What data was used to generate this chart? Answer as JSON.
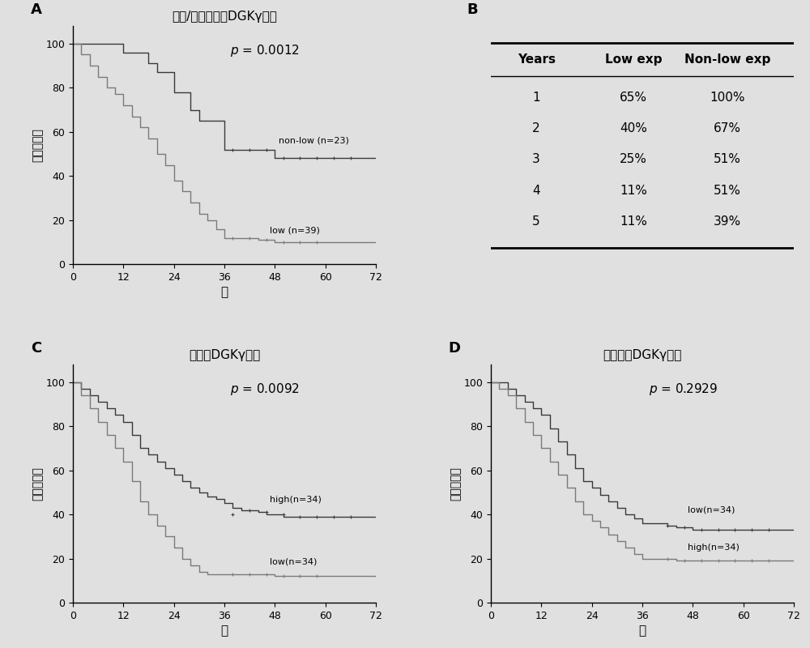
{
  "panel_A": {
    "title": "肿瘾/非肿瘾相对DGKγ表达",
    "xlabel": "月",
    "ylabel": "存活百分比",
    "pvalue": "p = 0.0012",
    "non_low": {
      "label": "non-low (n=23)",
      "x": [
        0,
        2,
        2,
        4,
        4,
        6,
        6,
        8,
        8,
        10,
        10,
        12,
        12,
        14,
        14,
        16,
        16,
        18,
        18,
        20,
        20,
        22,
        22,
        24,
        24,
        26,
        26,
        28,
        28,
        30,
        30,
        32,
        32,
        34,
        34,
        36,
        36,
        38,
        38,
        40,
        40,
        42,
        42,
        44,
        44,
        46,
        46,
        48,
        48,
        50,
        50,
        52,
        52,
        54,
        54,
        56,
        56,
        58,
        58,
        60,
        60,
        66,
        66,
        72
      ],
      "y": [
        100,
        100,
        100,
        100,
        100,
        100,
        100,
        100,
        100,
        100,
        100,
        100,
        96,
        96,
        96,
        96,
        96,
        96,
        91,
        91,
        87,
        87,
        87,
        87,
        78,
        78,
        78,
        78,
        70,
        70,
        65,
        65,
        65,
        65,
        65,
        65,
        52,
        52,
        52,
        52,
        52,
        52,
        52,
        52,
        52,
        52,
        52,
        52,
        48,
        48,
        48,
        48,
        48,
        48,
        48,
        48,
        48,
        48,
        48,
        48,
        48,
        48,
        48,
        48
      ]
    },
    "low": {
      "label": "low (n=39)",
      "x": [
        0,
        2,
        2,
        4,
        4,
        6,
        6,
        8,
        8,
        10,
        10,
        12,
        12,
        14,
        14,
        16,
        16,
        18,
        18,
        20,
        20,
        22,
        22,
        24,
        24,
        26,
        26,
        28,
        28,
        30,
        30,
        32,
        32,
        34,
        34,
        36,
        36,
        38,
        38,
        40,
        40,
        42,
        42,
        44,
        44,
        46,
        46,
        48,
        48,
        50,
        50,
        52,
        52,
        54,
        54,
        56,
        56,
        58,
        58,
        60,
        60,
        66,
        66,
        72
      ],
      "y": [
        100,
        100,
        95,
        95,
        90,
        90,
        85,
        85,
        80,
        80,
        77,
        77,
        72,
        72,
        67,
        67,
        62,
        62,
        57,
        57,
        50,
        50,
        45,
        45,
        38,
        38,
        33,
        33,
        28,
        28,
        23,
        23,
        20,
        20,
        16,
        16,
        12,
        12,
        12,
        12,
        12,
        12,
        12,
        12,
        11,
        11,
        11,
        11,
        10,
        10,
        10,
        10,
        10,
        10,
        10,
        10,
        10,
        10,
        10,
        10,
        10,
        10,
        10,
        10
      ]
    },
    "censors_non_low_x": [
      38,
      42,
      46,
      50,
      54,
      58,
      62,
      66
    ],
    "censors_non_low_y": [
      52,
      52,
      52,
      48,
      48,
      48,
      48,
      48
    ],
    "censors_low_x": [
      38,
      42,
      46,
      50,
      54,
      58
    ],
    "censors_low_y": [
      12,
      12,
      11,
      10,
      10,
      10
    ]
  },
  "panel_B": {
    "col_headers": [
      "Years",
      "Low exp",
      "Non-low exp"
    ],
    "rows": [
      [
        "1",
        "65%",
        "100%"
      ],
      [
        "2",
        "40%",
        "67%"
      ],
      [
        "3",
        "25%",
        "51%"
      ],
      [
        "4",
        "11%",
        "51%"
      ],
      [
        "5",
        "11%",
        "39%"
      ]
    ]
  },
  "panel_C": {
    "title": "肿瘾中DGKγ表达",
    "xlabel": "月",
    "ylabel": "存活百分比",
    "pvalue": "p = 0.0092",
    "high": {
      "label": "high(n=34)",
      "x": [
        0,
        2,
        2,
        4,
        4,
        6,
        6,
        8,
        8,
        10,
        10,
        12,
        12,
        14,
        14,
        16,
        16,
        18,
        18,
        20,
        20,
        22,
        22,
        24,
        24,
        26,
        26,
        28,
        28,
        30,
        30,
        32,
        32,
        34,
        34,
        36,
        36,
        38,
        38,
        40,
        40,
        42,
        42,
        44,
        44,
        46,
        46,
        48,
        48,
        50,
        50,
        52,
        52,
        54,
        54,
        56,
        56,
        58,
        58,
        60,
        60,
        66,
        66,
        72
      ],
      "y": [
        100,
        100,
        97,
        97,
        94,
        94,
        91,
        91,
        88,
        88,
        85,
        85,
        82,
        82,
        76,
        76,
        70,
        70,
        67,
        67,
        64,
        64,
        61,
        61,
        58,
        58,
        55,
        55,
        52,
        52,
        50,
        50,
        48,
        48,
        47,
        47,
        45,
        45,
        43,
        43,
        42,
        42,
        42,
        42,
        41,
        41,
        40,
        40,
        40,
        40,
        39,
        39,
        39,
        39,
        39,
        39,
        39,
        39,
        39,
        39,
        39,
        39,
        39,
        39
      ]
    },
    "low": {
      "label": "low(n=34)",
      "x": [
        0,
        2,
        2,
        4,
        4,
        6,
        6,
        8,
        8,
        10,
        10,
        12,
        12,
        14,
        14,
        16,
        16,
        18,
        18,
        20,
        20,
        22,
        22,
        24,
        24,
        26,
        26,
        28,
        28,
        30,
        30,
        32,
        32,
        34,
        34,
        36,
        36,
        38,
        38,
        40,
        40,
        42,
        42,
        44,
        44,
        46,
        46,
        48,
        48,
        50,
        50,
        52,
        52,
        54,
        54,
        56,
        56,
        58,
        58,
        60,
        60,
        66,
        66,
        72
      ],
      "y": [
        100,
        100,
        94,
        94,
        88,
        88,
        82,
        82,
        76,
        76,
        70,
        70,
        64,
        64,
        55,
        55,
        46,
        46,
        40,
        40,
        35,
        35,
        30,
        30,
        25,
        25,
        20,
        20,
        17,
        17,
        14,
        14,
        13,
        13,
        13,
        13,
        13,
        13,
        13,
        13,
        13,
        13,
        13,
        13,
        13,
        13,
        13,
        13,
        12,
        12,
        12,
        12,
        12,
        12,
        12,
        12,
        12,
        12,
        12,
        12,
        12,
        12,
        12,
        12
      ]
    },
    "censors_high_x": [
      38,
      42,
      46,
      50,
      54,
      58,
      62,
      66
    ],
    "censors_high_y": [
      40,
      42,
      41,
      40,
      39,
      39,
      39,
      39
    ],
    "censors_low_x": [
      38,
      42,
      46,
      50,
      54,
      58
    ],
    "censors_low_y": [
      13,
      13,
      13,
      12,
      12,
      12
    ]
  },
  "panel_D": {
    "title": "非肿瘾中DGKγ表达",
    "xlabel": "月",
    "ylabel": "存活百分比",
    "pvalue": "p = 0.2929",
    "low": {
      "label": "low(n=34)",
      "x": [
        0,
        2,
        2,
        4,
        4,
        6,
        6,
        8,
        8,
        10,
        10,
        12,
        12,
        14,
        14,
        16,
        16,
        18,
        18,
        20,
        20,
        22,
        22,
        24,
        24,
        26,
        26,
        28,
        28,
        30,
        30,
        32,
        32,
        34,
        34,
        36,
        36,
        38,
        38,
        40,
        40,
        42,
        42,
        44,
        44,
        46,
        46,
        48,
        48,
        50,
        50,
        52,
        52,
        54,
        54,
        56,
        56,
        58,
        58,
        60,
        60,
        66,
        66,
        72
      ],
      "y": [
        100,
        100,
        100,
        100,
        97,
        97,
        94,
        94,
        91,
        91,
        88,
        88,
        85,
        85,
        79,
        79,
        73,
        73,
        67,
        67,
        61,
        61,
        55,
        55,
        52,
        52,
        49,
        49,
        46,
        46,
        43,
        43,
        40,
        40,
        38,
        38,
        36,
        36,
        36,
        36,
        36,
        36,
        35,
        35,
        34,
        34,
        34,
        34,
        33,
        33,
        33,
        33,
        33,
        33,
        33,
        33,
        33,
        33,
        33,
        33,
        33,
        33,
        33,
        33
      ]
    },
    "high": {
      "label": "high(n=34)",
      "x": [
        0,
        2,
        2,
        4,
        4,
        6,
        6,
        8,
        8,
        10,
        10,
        12,
        12,
        14,
        14,
        16,
        16,
        18,
        18,
        20,
        20,
        22,
        22,
        24,
        24,
        26,
        26,
        28,
        28,
        30,
        30,
        32,
        32,
        34,
        34,
        36,
        36,
        38,
        38,
        40,
        40,
        42,
        42,
        44,
        44,
        46,
        46,
        48,
        48,
        50,
        50,
        52,
        52,
        54,
        54,
        56,
        56,
        58,
        58,
        60,
        60,
        66,
        66,
        72
      ],
      "y": [
        100,
        100,
        97,
        97,
        94,
        94,
        88,
        88,
        82,
        82,
        76,
        76,
        70,
        70,
        64,
        64,
        58,
        58,
        52,
        52,
        46,
        46,
        40,
        40,
        37,
        37,
        34,
        34,
        31,
        31,
        28,
        28,
        25,
        25,
        22,
        22,
        20,
        20,
        20,
        20,
        20,
        20,
        20,
        20,
        19,
        19,
        19,
        19,
        19,
        19,
        19,
        19,
        19,
        19,
        19,
        19,
        19,
        19,
        19,
        19,
        19,
        19,
        19,
        19
      ]
    },
    "censors_low_x": [
      42,
      46,
      50,
      54,
      58,
      62,
      66
    ],
    "censors_low_y": [
      35,
      34,
      33,
      33,
      33,
      33,
      33
    ],
    "censors_high_x": [
      42,
      46,
      50,
      54,
      58,
      62,
      66
    ],
    "censors_high_y": [
      20,
      19,
      19,
      19,
      19,
      19,
      19
    ]
  },
  "color_dark": "#3a3a3a",
  "color_medium": "#7a7a7a",
  "bg_color": "#e0e0e0",
  "plot_bg": "#e8e8e8"
}
